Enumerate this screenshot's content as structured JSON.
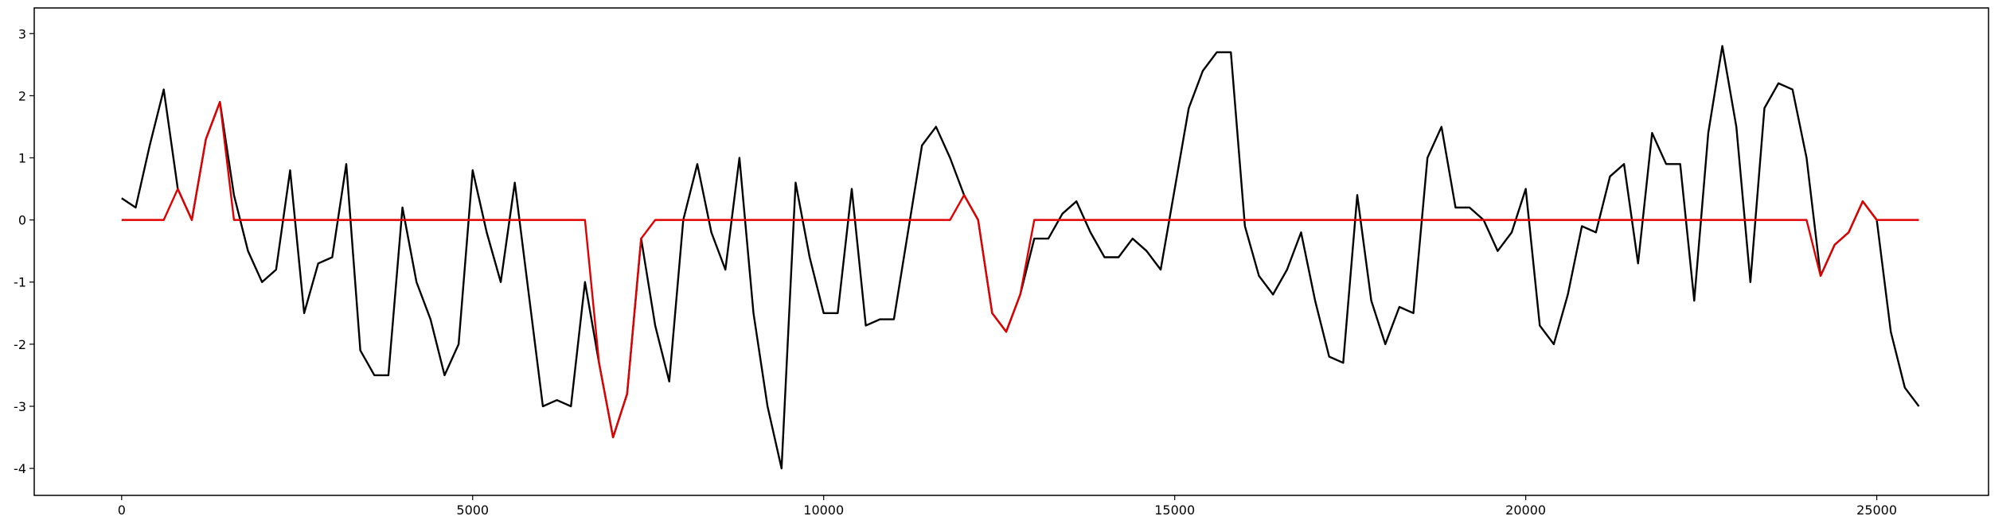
{
  "chart_data": {
    "type": "line",
    "x": [
      0,
      200,
      400,
      600,
      800,
      1000,
      1200,
      1400,
      1600,
      1800,
      2000,
      2200,
      2400,
      2600,
      2800,
      3000,
      3200,
      3400,
      3600,
      3800,
      4000,
      4200,
      4400,
      4600,
      4800,
      5000,
      5200,
      5400,
      5600,
      5800,
      6000,
      6200,
      6400,
      6600,
      6800,
      7000,
      7200,
      7400,
      7600,
      7800,
      8000,
      8200,
      8400,
      8600,
      8800,
      9000,
      9200,
      9400,
      9600,
      9800,
      10000,
      10200,
      10400,
      10600,
      10800,
      11000,
      11200,
      11400,
      11600,
      11800,
      12000,
      12200,
      12400,
      12600,
      12800,
      13000,
      13200,
      13400,
      13600,
      13800,
      14000,
      14200,
      14400,
      14600,
      14800,
      15000,
      15200,
      15400,
      15600,
      15800,
      16000,
      16200,
      16400,
      16600,
      16800,
      17000,
      17200,
      17400,
      17600,
      17800,
      18000,
      18200,
      18400,
      18600,
      18800,
      19000,
      19200,
      19400,
      19600,
      19800,
      20000,
      20200,
      20400,
      20600,
      20800,
      21000,
      21200,
      21400,
      21600,
      21800,
      22000,
      22200,
      22400,
      22600,
      22800,
      23000,
      23200,
      23400,
      23600,
      23800,
      24000,
      24200,
      24400,
      24600,
      24800,
      25000,
      25200,
      25400,
      25600
    ],
    "series": [
      {
        "color": "#000000",
        "values": [
          0.35,
          0.2,
          1.2,
          2.1,
          0.5,
          0.0,
          1.3,
          1.9,
          0.4,
          -0.5,
          -1.0,
          -0.8,
          0.8,
          -1.5,
          -0.7,
          -0.6,
          0.9,
          -2.1,
          -2.5,
          -2.5,
          0.2,
          -1.0,
          -1.6,
          -2.5,
          -2.0,
          0.8,
          -0.2,
          -1.0,
          0.6,
          -1.2,
          -3.0,
          -2.9,
          -3.0,
          -1.0,
          -2.3,
          -3.5,
          -2.8,
          -0.3,
          -1.7,
          -2.6,
          0.0,
          0.9,
          -0.2,
          -0.8,
          1.0,
          -1.5,
          -3.0,
          -4.0,
          0.6,
          -0.6,
          -1.5,
          -1.5,
          0.5,
          -1.7,
          -1.6,
          -1.6,
          -0.2,
          1.2,
          1.5,
          1.0,
          0.4,
          0.0,
          -1.5,
          -1.8,
          -1.2,
          -0.3,
          -0.3,
          0.1,
          0.3,
          -0.2,
          -0.6,
          -0.6,
          -0.3,
          -0.5,
          -0.8,
          0.5,
          1.8,
          2.4,
          2.7,
          2.7,
          -0.1,
          -0.9,
          -1.2,
          -0.8,
          -0.2,
          -1.3,
          -2.2,
          -2.3,
          0.4,
          -1.3,
          -2.0,
          -1.4,
          -1.5,
          1.0,
          1.5,
          0.2,
          0.2,
          0.0,
          -0.5,
          -0.2,
          0.5,
          -1.7,
          -2.0,
          -1.2,
          -0.1,
          -0.2,
          0.7,
          0.9,
          -0.7,
          1.4,
          0.9,
          0.9,
          -1.3,
          1.4,
          2.8,
          1.5,
          -1.0,
          1.8,
          2.2,
          2.1,
          1.0,
          -0.9,
          -0.4,
          -0.2,
          0.3,
          0.0,
          -1.8,
          -2.7,
          -3.0
        ]
      },
      {
        "color": "#e00000",
        "values": [
          0,
          0,
          0,
          0,
          0.5,
          0.0,
          1.3,
          1.9,
          0,
          0,
          0,
          0,
          0,
          0,
          0,
          0,
          0,
          0,
          0,
          0,
          0,
          0,
          0,
          0,
          0,
          0,
          0,
          0,
          0,
          0,
          0,
          0,
          0,
          0,
          -2.3,
          -3.5,
          -2.8,
          -0.3,
          0,
          0,
          0,
          0,
          0,
          0,
          0,
          0,
          0,
          0,
          0,
          0,
          0,
          0,
          0,
          0,
          0,
          0,
          0,
          0,
          0,
          0,
          0.4,
          0.0,
          -1.5,
          -1.8,
          -1.2,
          0,
          0,
          0,
          0,
          0,
          0,
          0,
          0,
          0,
          0,
          0,
          0,
          0,
          0,
          0,
          0,
          0,
          0,
          0,
          0,
          0,
          0,
          0,
          0,
          0,
          0,
          0,
          0,
          0,
          0,
          0,
          0,
          0,
          0,
          0,
          0,
          0,
          0,
          0,
          0,
          0,
          0,
          0,
          0,
          0,
          0,
          0,
          0,
          0,
          0,
          0,
          0,
          0,
          0,
          0,
          0,
          -0.9,
          -0.4,
          -0.2,
          0.3,
          0,
          0,
          0,
          0
        ]
      }
    ],
    "xlim": [
      -1245,
      26592
    ],
    "ylim": [
      -4.434,
      3.413
    ],
    "xticks": [
      0,
      5000,
      10000,
      15000,
      20000,
      25000
    ],
    "yticks": [
      -4,
      -3,
      -2,
      -1,
      0,
      1,
      2,
      3
    ]
  }
}
